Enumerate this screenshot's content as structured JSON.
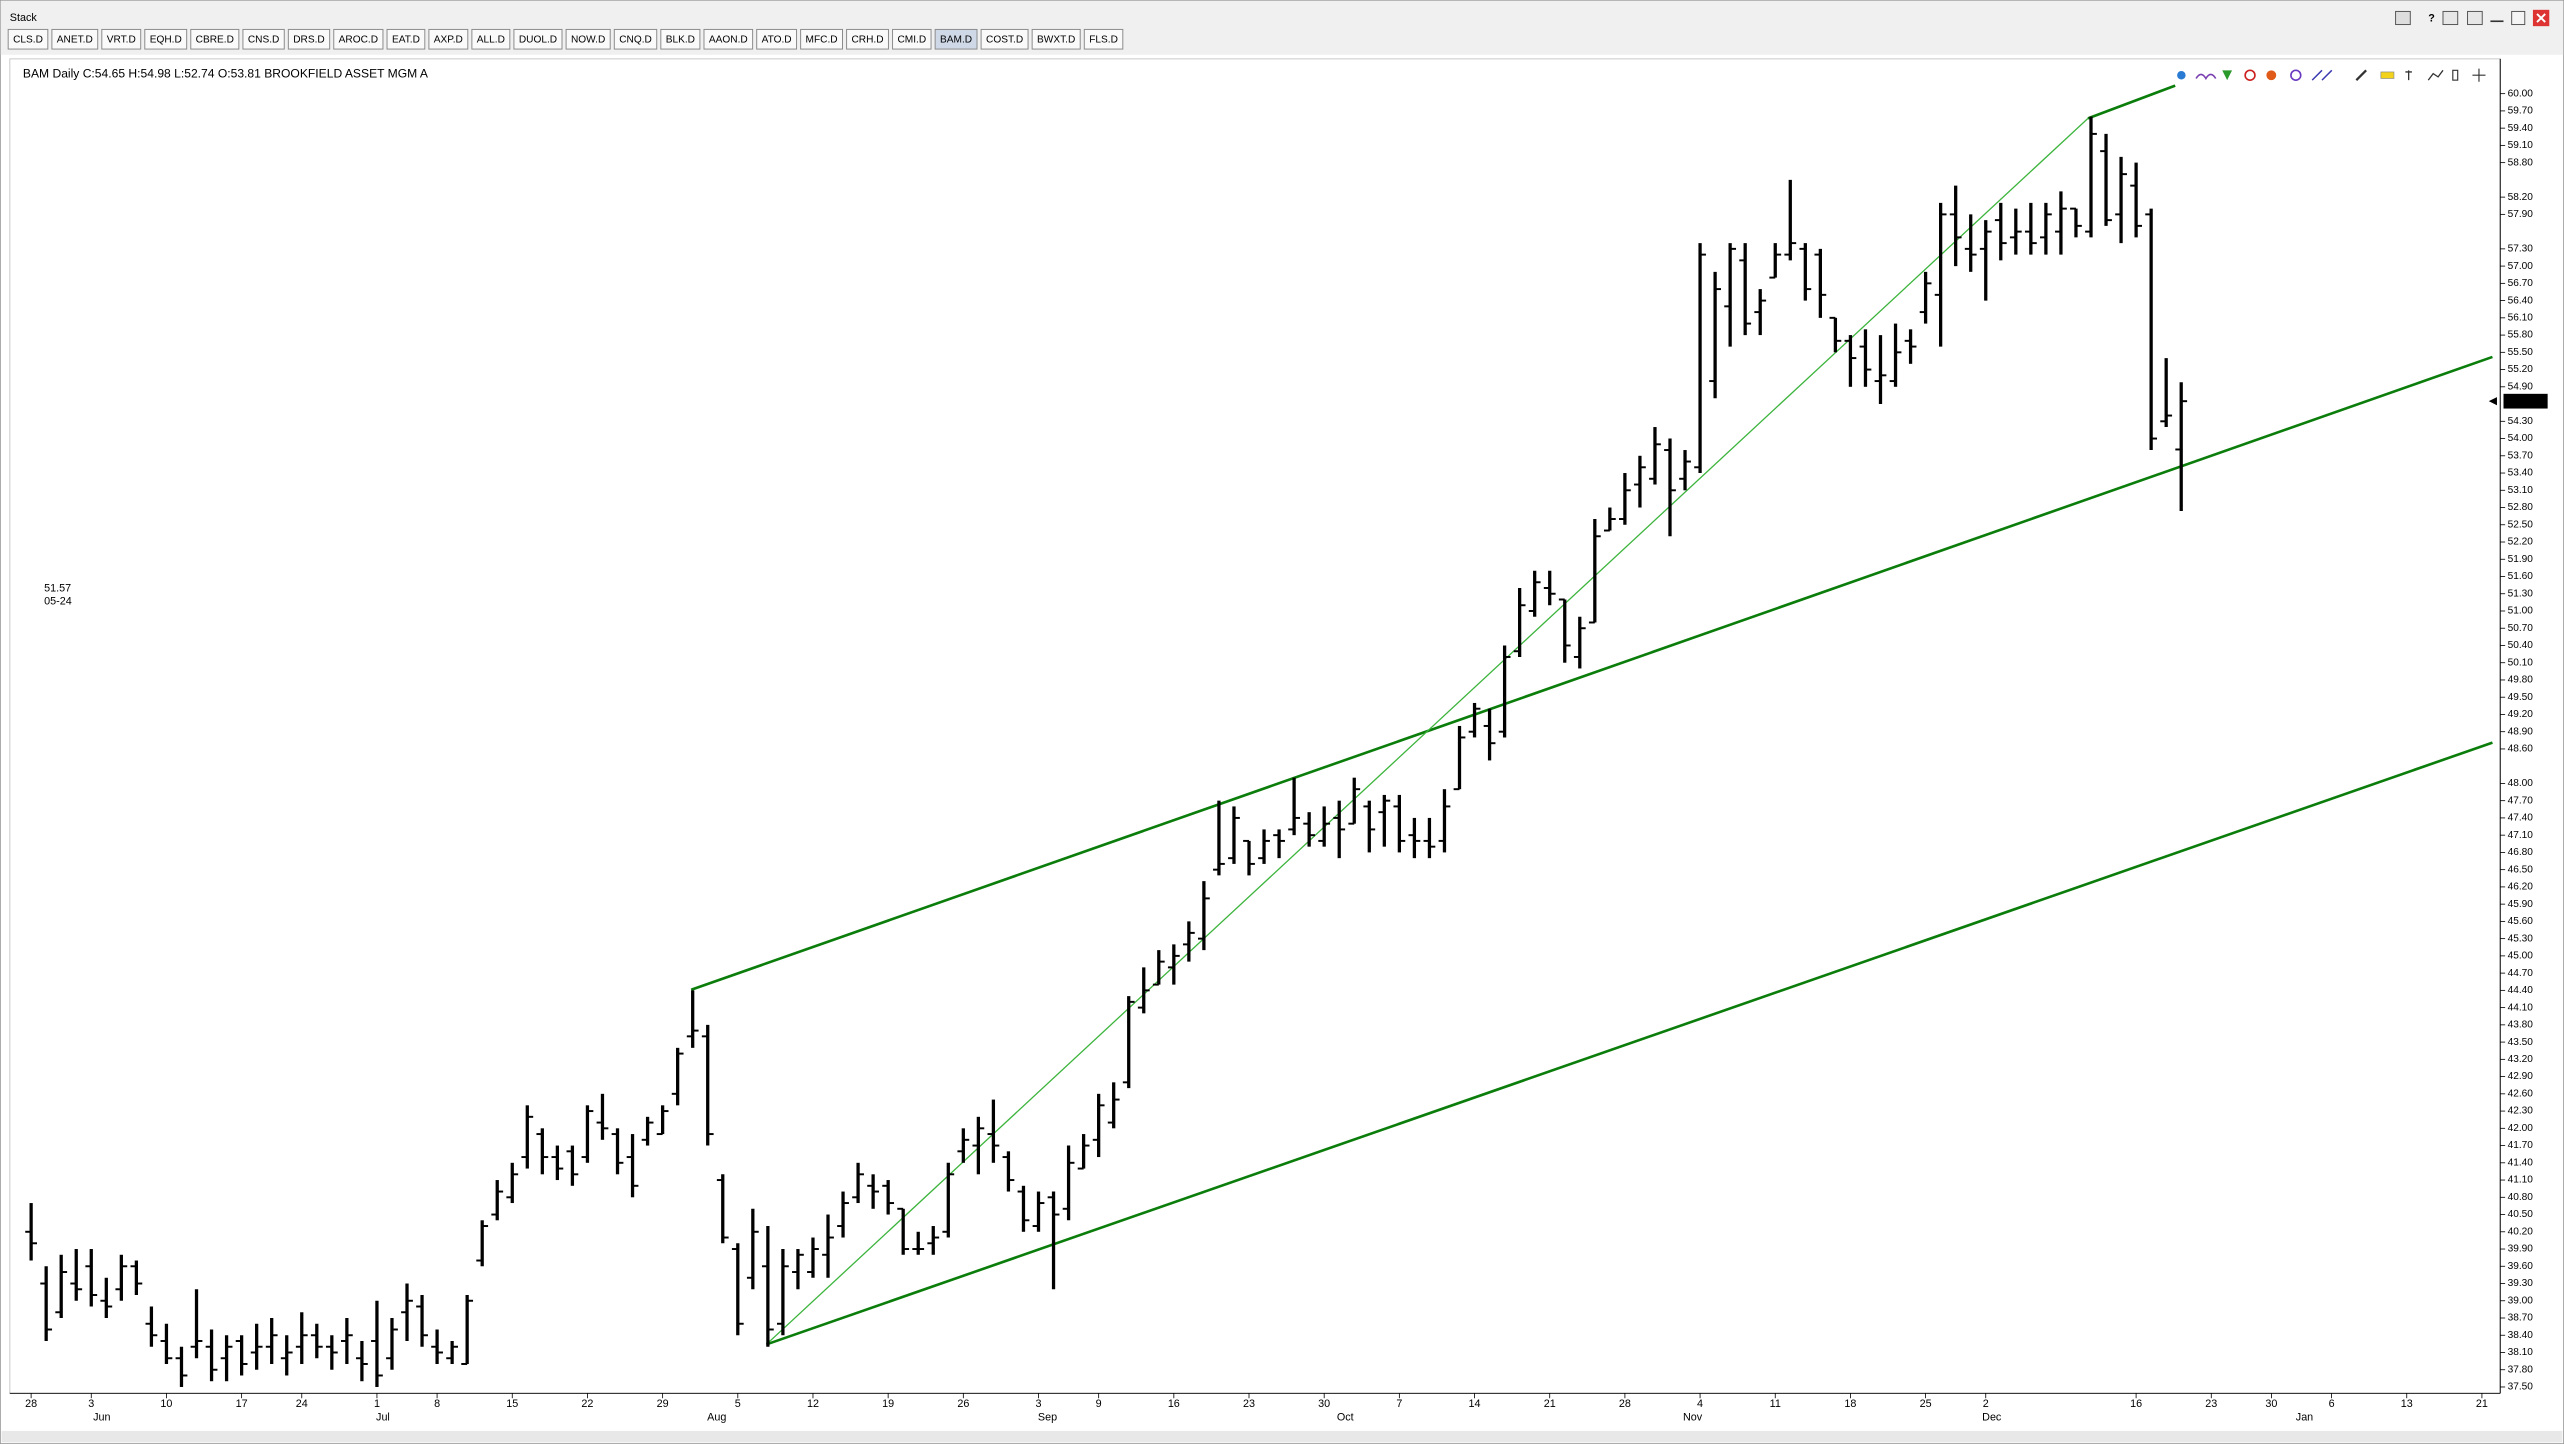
{
  "window": {
    "title": "Stack",
    "tabs": [
      "CLS.D",
      "ANET.D",
      "VRT.D",
      "EQH.D",
      "CBRE.D",
      "CNS.D",
      "DRS.D",
      "AROC.D",
      "EAT.D",
      "AXP.D",
      "ALL.D",
      "DUOL.D",
      "NOW.D",
      "CNQ.D",
      "BLK.D",
      "AAON.D",
      "ATO.D",
      "MFC.D",
      "CRH.D",
      "CMI.D",
      "BAM.D",
      "COST.D",
      "BWXT.D",
      "FLS.D"
    ],
    "active_tab": 20
  },
  "cursor_readout": [
    "51.57",
    "05-24"
  ],
  "chart_data": {
    "type": "ohlc",
    "title": "BAM Daily C:54.65 H:54.98 L:52.74 O:53.81 BROOKFIELD ASSET MGM A",
    "color": "#000000",
    "x": [
      0,
      1,
      2,
      3,
      4,
      5,
      6,
      7,
      8,
      9,
      10,
      11,
      12,
      13,
      14,
      15,
      16,
      17,
      18,
      19,
      20,
      21,
      22,
      23,
      24,
      25,
      26,
      27,
      28,
      29,
      30,
      31,
      32,
      33,
      34,
      35,
      36,
      37,
      38,
      39,
      40,
      41,
      42,
      43,
      44,
      45,
      46,
      47,
      48,
      49,
      50,
      51,
      52,
      53,
      54,
      55,
      56,
      57,
      58,
      59,
      60,
      61,
      62,
      63,
      64,
      65,
      66,
      67,
      68,
      69,
      70,
      71,
      72,
      73,
      74,
      75,
      76,
      77,
      78,
      79,
      80,
      81,
      82,
      83,
      84,
      85,
      86,
      87,
      88,
      89,
      90,
      91,
      92,
      93,
      94,
      95,
      96,
      97,
      98,
      99,
      100,
      101,
      102,
      103,
      104,
      105,
      106,
      107,
      108,
      109,
      110,
      111,
      112,
      113,
      114,
      115,
      116,
      117,
      118,
      119,
      120,
      121,
      122,
      123,
      124,
      125,
      126,
      127,
      128,
      129,
      130,
      131,
      132,
      133,
      134,
      135,
      136,
      137,
      138,
      139,
      140,
      141,
      142,
      143
    ],
    "open": [
      40.2,
      39.3,
      38.8,
      39.3,
      39.6,
      39.0,
      39.2,
      39.6,
      38.6,
      38.3,
      38.0,
      38.2,
      38.2,
      38.0,
      38.3,
      38.1,
      38.2,
      38.0,
      38.2,
      38.4,
      38.2,
      38.3,
      38.0,
      38.3,
      38.0,
      38.8,
      38.9,
      38.2,
      38.0,
      37.9,
      39.7,
      40.5,
      40.8,
      41.5,
      41.9,
      41.5,
      41.6,
      41.5,
      42.1,
      41.9,
      41.5,
      41.8,
      41.9,
      42.6,
      43.6,
      43.6,
      41.1,
      39.9,
      39.4,
      39.6,
      38.6,
      39.5,
      39.5,
      39.8,
      40.3,
      40.8,
      41.0,
      41.0,
      40.6,
      39.9,
      40.0,
      40.2,
      41.6,
      41.7,
      41.9,
      41.5,
      40.9,
      40.3,
      40.8,
      40.6,
      41.3,
      41.8,
      42.1,
      42.8,
      44.1,
      44.5,
      44.8,
      45.2,
      45.3,
      46.5,
      46.7,
      47.0,
      46.7,
      47.1,
      47.2,
      47.3,
      47.0,
      47.4,
      47.3,
      47.6,
      47.5,
      47.6,
      47.1,
      47.0,
      47.0,
      47.9,
      48.9,
      49.0,
      48.9,
      50.3,
      51.0,
      51.4,
      51.2,
      50.2,
      50.8,
      52.4,
      52.6,
      53.2,
      53.3,
      53.8,
      53.3,
      53.5,
      55.0,
      56.3,
      57.1,
      56.2,
      56.8,
      57.2,
      57.3,
      57.2,
      56.1,
      55.7,
      55.6,
      55.0,
      55.0,
      55.7,
      56.2,
      56.5,
      57.9,
      57.3,
      57.3,
      57.8,
      57.5,
      57.6,
      57.5,
      57.6,
      58.0,
      57.6,
      59.0,
      57.9,
      58.4,
      57.9,
      54.3,
      53.81
    ],
    "high": [
      40.7,
      39.6,
      39.8,
      39.9,
      39.9,
      39.4,
      39.8,
      39.7,
      38.9,
      38.6,
      38.2,
      39.2,
      38.5,
      38.4,
      38.4,
      38.6,
      38.7,
      38.4,
      38.8,
      38.6,
      38.4,
      38.7,
      38.3,
      39.0,
      38.7,
      39.3,
      39.1,
      38.5,
      38.3,
      39.1,
      40.4,
      41.1,
      41.4,
      42.4,
      42.0,
      41.7,
      41.7,
      42.4,
      42.6,
      42.0,
      41.9,
      42.2,
      42.4,
      43.4,
      44.4,
      43.8,
      41.2,
      40.0,
      40.6,
      40.3,
      39.9,
      39.9,
      40.1,
      40.5,
      40.9,
      41.4,
      41.2,
      41.1,
      40.6,
      40.2,
      40.3,
      41.4,
      42.0,
      42.2,
      42.5,
      41.6,
      41.0,
      40.9,
      40.9,
      41.7,
      41.9,
      42.6,
      42.8,
      44.3,
      44.8,
      45.1,
      45.2,
      45.6,
      46.3,
      47.7,
      47.6,
      47.0,
      47.2,
      47.2,
      48.1,
      47.5,
      47.6,
      47.7,
      48.1,
      47.7,
      47.8,
      47.8,
      47.4,
      47.4,
      47.9,
      49.0,
      49.4,
      49.3,
      50.4,
      51.4,
      51.7,
      51.7,
      51.2,
      50.9,
      52.6,
      52.8,
      53.4,
      53.7,
      54.2,
      54.0,
      53.8,
      57.4,
      56.9,
      57.4,
      57.4,
      56.6,
      57.4,
      58.5,
      57.4,
      57.3,
      56.1,
      55.8,
      55.9,
      55.8,
      56.0,
      55.9,
      56.9,
      58.1,
      58.4,
      57.9,
      57.8,
      58.1,
      58.0,
      58.1,
      58.1,
      58.3,
      58.0,
      59.6,
      59.3,
      58.9,
      58.8,
      58.0,
      55.4,
      54.98
    ],
    "low": [
      39.7,
      38.3,
      38.7,
      39.0,
      38.9,
      38.7,
      39.0,
      39.1,
      38.2,
      37.9,
      37.5,
      38.0,
      37.6,
      37.6,
      37.7,
      37.8,
      37.9,
      37.7,
      37.9,
      38.0,
      37.8,
      37.9,
      37.6,
      37.5,
      37.8,
      38.3,
      38.2,
      37.9,
      37.9,
      37.9,
      39.6,
      40.4,
      40.7,
      41.3,
      41.2,
      41.1,
      41.0,
      41.4,
      41.8,
      41.2,
      40.8,
      41.7,
      41.9,
      42.4,
      43.4,
      41.7,
      40.0,
      38.4,
      39.2,
      38.2,
      38.4,
      39.2,
      39.4,
      39.4,
      40.1,
      40.7,
      40.6,
      40.5,
      39.8,
      39.8,
      39.8,
      40.1,
      41.4,
      41.2,
      41.4,
      40.9,
      40.2,
      40.2,
      39.2,
      40.4,
      41.3,
      41.5,
      42.0,
      42.7,
      44.0,
      44.5,
      44.5,
      44.9,
      45.1,
      46.4,
      46.6,
      46.4,
      46.6,
      46.7,
      47.1,
      46.9,
      46.9,
      46.7,
      47.3,
      46.8,
      46.9,
      46.8,
      46.7,
      46.7,
      46.8,
      47.9,
      48.8,
      48.4,
      48.8,
      50.2,
      50.9,
      51.1,
      50.1,
      50.0,
      50.8,
      52.4,
      52.5,
      52.8,
      53.2,
      52.3,
      53.1,
      53.4,
      54.7,
      55.6,
      55.8,
      55.8,
      56.8,
      57.1,
      56.4,
      56.1,
      55.5,
      54.9,
      54.9,
      54.6,
      54.9,
      55.3,
      56.0,
      55.6,
      57.0,
      56.9,
      56.4,
      57.1,
      57.2,
      57.2,
      57.2,
      57.2,
      57.5,
      57.5,
      57.7,
      57.4,
      57.5,
      53.8,
      54.2,
      52.74
    ],
    "close": [
      40.0,
      38.5,
      39.5,
      39.2,
      39.1,
      38.9,
      39.6,
      39.3,
      38.4,
      38.0,
      37.7,
      38.3,
      37.8,
      38.2,
      37.9,
      38.2,
      38.4,
      38.1,
      38.4,
      38.2,
      38.1,
      38.4,
      37.9,
      37.7,
      38.5,
      39.0,
      38.4,
      38.1,
      38.2,
      39.0,
      40.3,
      40.9,
      41.2,
      42.2,
      41.5,
      41.3,
      41.2,
      42.3,
      42.0,
      41.4,
      41.0,
      42.1,
      42.3,
      43.3,
      43.7,
      41.9,
      40.1,
      38.6,
      40.2,
      38.5,
      39.6,
      39.8,
      39.9,
      40.1,
      40.7,
      41.2,
      40.9,
      40.7,
      39.9,
      39.9,
      40.1,
      41.2,
      41.8,
      42.0,
      41.7,
      41.1,
      40.4,
      40.7,
      40.5,
      41.4,
      41.7,
      42.4,
      42.5,
      44.2,
      44.4,
      44.9,
      45.0,
      45.4,
      46.0,
      46.6,
      47.4,
      46.6,
      47.0,
      47.0,
      47.4,
      47.1,
      47.3,
      47.2,
      47.9,
      47.2,
      47.7,
      47.0,
      47.0,
      46.9,
      47.6,
      48.8,
      49.3,
      48.7,
      50.2,
      51.1,
      51.5,
      51.3,
      50.4,
      50.7,
      52.3,
      52.6,
      53.1,
      53.5,
      53.9,
      53.1,
      53.6,
      57.2,
      56.6,
      57.3,
      56.0,
      56.4,
      57.2,
      57.4,
      56.6,
      56.5,
      55.7,
      55.4,
      55.2,
      55.1,
      55.5,
      55.6,
      56.7,
      57.9,
      57.5,
      57.2,
      57.6,
      57.4,
      57.6,
      57.4,
      57.9,
      58.0,
      57.7,
      59.3,
      57.8,
      58.6,
      57.7,
      54.0,
      54.4,
      54.65
    ],
    "xlim": [
      -1.2,
      164
    ],
    "ylim": [
      37.39,
      60.15
    ],
    "xticks": [
      {
        "value": 0,
        "label": "28"
      },
      {
        "value": 4,
        "label": "3"
      },
      {
        "value": 9,
        "label": "10"
      },
      {
        "value": 14,
        "label": "17"
      },
      {
        "value": 18,
        "label": "24"
      },
      {
        "value": 23,
        "label": "1"
      },
      {
        "value": 27,
        "label": "8"
      },
      {
        "value": 32,
        "label": "15"
      },
      {
        "value": 37,
        "label": "22"
      },
      {
        "value": 42,
        "label": "29"
      },
      {
        "value": 47,
        "label": "5"
      },
      {
        "value": 52,
        "label": "12"
      },
      {
        "value": 57,
        "label": "19"
      },
      {
        "value": 62,
        "label": "26"
      },
      {
        "value": 67,
        "label": "3"
      },
      {
        "value": 71,
        "label": "9"
      },
      {
        "value": 76,
        "label": "16"
      },
      {
        "value": 81,
        "label": "23"
      },
      {
        "value": 86,
        "label": "30"
      },
      {
        "value": 91,
        "label": "7"
      },
      {
        "value": 96,
        "label": "14"
      },
      {
        "value": 101,
        "label": "21"
      },
      {
        "value": 106,
        "label": "28"
      },
      {
        "value": 111,
        "label": "4"
      },
      {
        "value": 116,
        "label": "11"
      },
      {
        "value": 121,
        "label": "18"
      },
      {
        "value": 126,
        "label": "25"
      },
      {
        "value": 130,
        "label": "2"
      },
      {
        "value": 140,
        "label": "16"
      },
      {
        "value": 145,
        "label": "23"
      },
      {
        "value": 149,
        "label": "30"
      },
      {
        "value": 153,
        "label": "6"
      },
      {
        "value": 158,
        "label": "13"
      },
      {
        "value": 163,
        "label": "21"
      }
    ],
    "months": [
      {
        "value": 4.7,
        "label": "Jun"
      },
      {
        "value": 23.4,
        "label": "Jul"
      },
      {
        "value": 45.6,
        "label": "Aug"
      },
      {
        "value": 67.6,
        "label": "Sep"
      },
      {
        "value": 87.4,
        "label": "Oct"
      },
      {
        "value": 110.5,
        "label": "Nov"
      },
      {
        "value": 130.4,
        "label": "Dec"
      },
      {
        "value": 151.2,
        "label": "Jan"
      }
    ],
    "yticks": [
      {
        "value": 60.0,
        "label": "60.00"
      },
      {
        "value": 59.7,
        "label": "59.70"
      },
      {
        "value": 59.4,
        "label": "59.40"
      },
      {
        "value": 59.1,
        "label": "59.10"
      },
      {
        "value": 58.8,
        "label": "58.80"
      },
      {
        "value": 58.2,
        "label": "58.20"
      },
      {
        "value": 57.9,
        "label": "57.90"
      },
      {
        "value": 57.3,
        "label": "57.30"
      },
      {
        "value": 57.0,
        "label": "57.00"
      },
      {
        "value": 56.7,
        "label": "56.70"
      },
      {
        "value": 56.4,
        "label": "56.40"
      },
      {
        "value": 56.1,
        "label": "56.10"
      },
      {
        "value": 55.8,
        "label": "55.80"
      },
      {
        "value": 55.5,
        "label": "55.50"
      },
      {
        "value": 55.2,
        "label": "55.20"
      },
      {
        "value": 54.9,
        "label": "54.90"
      },
      {
        "value": 54.3,
        "label": "54.30"
      },
      {
        "value": 54.0,
        "label": "54.00"
      },
      {
        "value": 53.7,
        "label": "53.70"
      },
      {
        "value": 53.4,
        "label": "53.40"
      },
      {
        "value": 53.1,
        "label": "53.10"
      },
      {
        "value": 52.8,
        "label": "52.80"
      },
      {
        "value": 52.5,
        "label": "52.50"
      },
      {
        "value": 52.2,
        "label": "52.20"
      },
      {
        "value": 51.9,
        "label": "51.90"
      },
      {
        "value": 51.6,
        "label": "51.60"
      },
      {
        "value": 51.3,
        "label": "51.30"
      },
      {
        "value": 51.0,
        "label": "51.00"
      },
      {
        "value": 50.7,
        "label": "50.70"
      },
      {
        "value": 50.4,
        "label": "50.40"
      },
      {
        "value": 50.1,
        "label": "50.10"
      },
      {
        "value": 49.8,
        "label": "49.80"
      },
      {
        "value": 49.5,
        "label": "49.50"
      },
      {
        "value": 49.2,
        "label": "49.20"
      },
      {
        "value": 48.9,
        "label": "48.90"
      },
      {
        "value": 48.6,
        "label": "48.60"
      },
      {
        "value": 48.0,
        "label": "48.00"
      },
      {
        "value": 47.7,
        "label": "47.70"
      },
      {
        "value": 47.4,
        "label": "47.40"
      },
      {
        "value": 47.1,
        "label": "47.10"
      },
      {
        "value": 46.8,
        "label": "46.80"
      },
      {
        "value": 46.5,
        "label": "46.50"
      },
      {
        "value": 46.2,
        "label": "46.20"
      },
      {
        "value": 45.9,
        "label": "45.90"
      },
      {
        "value": 45.6,
        "label": "45.60"
      },
      {
        "value": 45.3,
        "label": "45.30"
      },
      {
        "value": 45.0,
        "label": "45.00"
      },
      {
        "value": 44.7,
        "label": "44.70"
      },
      {
        "value": 44.4,
        "label": "44.40"
      },
      {
        "value": 44.1,
        "label": "44.10"
      },
      {
        "value": 43.8,
        "label": "43.80"
      },
      {
        "value": 43.5,
        "label": "43.50"
      },
      {
        "value": 43.2,
        "label": "43.20"
      },
      {
        "value": 42.9,
        "label": "42.90"
      },
      {
        "value": 42.6,
        "label": "42.60"
      },
      {
        "value": 42.3,
        "label": "42.30"
      },
      {
        "value": 42.0,
        "label": "42.00"
      },
      {
        "value": 41.7,
        "label": "41.70"
      },
      {
        "value": 41.4,
        "label": "41.40"
      },
      {
        "value": 41.1,
        "label": "41.10"
      },
      {
        "value": 40.8,
        "label": "40.80"
      },
      {
        "value": 40.5,
        "label": "40.50"
      },
      {
        "value": 40.2,
        "label": "40.20"
      },
      {
        "value": 39.9,
        "label": "39.90"
      },
      {
        "value": 39.6,
        "label": "39.60"
      },
      {
        "value": 39.3,
        "label": "39.30"
      },
      {
        "value": 39.0,
        "label": "39.00"
      },
      {
        "value": 38.7,
        "label": "38.70"
      },
      {
        "value": 38.4,
        "label": "38.40"
      },
      {
        "value": 38.1,
        "label": "38.10"
      },
      {
        "value": 37.8,
        "label": "37.80"
      },
      {
        "value": 37.5,
        "label": "37.50"
      }
    ],
    "trendlines": [
      {
        "color": "#0b7d0b",
        "x": [
          43.9,
          163.7
        ],
        "y": [
          44.41,
          55.42
        ]
      },
      {
        "color": "#0b7d0b",
        "x": [
          48.9,
          163.7
        ],
        "y": [
          38.24,
          48.71
        ]
      },
      {
        "color": "#3cb43c",
        "x": [
          48.9,
          136.8
        ],
        "y": [
          38.24,
          59.57
        ]
      },
      {
        "color": "#0b7d0b",
        "x": [
          136.8,
          142.6
        ],
        "y": [
          59.57,
          60.14
        ]
      }
    ]
  }
}
